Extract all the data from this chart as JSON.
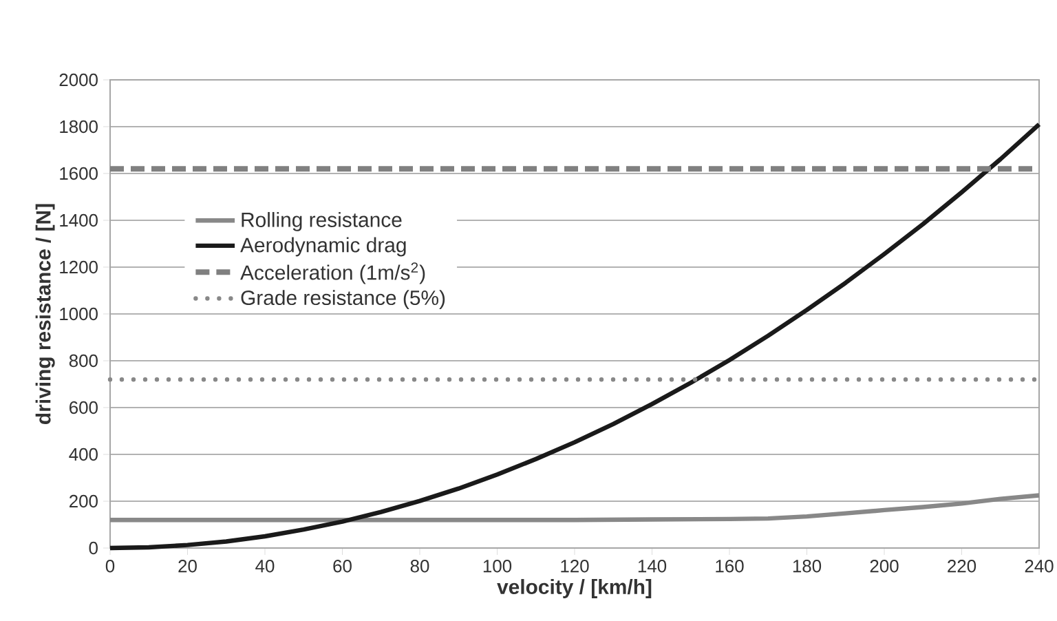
{
  "chart_data": {
    "type": "line",
    "xlabel": "velocity / [km/h]",
    "ylabel": "driving resistance / [N]",
    "xlim": [
      0,
      240
    ],
    "xticks": [
      0,
      20,
      40,
      60,
      80,
      100,
      120,
      140,
      160,
      180,
      200,
      220,
      240
    ],
    "ylim": [
      0,
      2000
    ],
    "yticks": [
      0,
      200,
      400,
      600,
      800,
      1000,
      1200,
      1400,
      1600,
      1800,
      2000
    ],
    "grid": "y",
    "legend": "left",
    "series": [
      {
        "name": "Rolling resistance",
        "color": "#888888",
        "line_style": "solid",
        "x": [
          0,
          20,
          40,
          60,
          80,
          100,
          120,
          140,
          160,
          170,
          180,
          190,
          200,
          210,
          220,
          230,
          240
        ],
        "values": [
          120,
          120,
          120,
          120,
          120,
          120,
          120,
          122,
          124,
          126,
          135,
          148,
          162,
          175,
          190,
          210,
          225
        ]
      },
      {
        "name": "Aerodynamic drag",
        "color": "#1a1a1a",
        "line_style": "solid",
        "x": [
          0,
          10,
          20,
          30,
          40,
          50,
          60,
          70,
          80,
          90,
          100,
          110,
          120,
          130,
          140,
          150,
          160,
          170,
          180,
          190,
          200,
          210,
          220,
          230,
          240
        ],
        "values": [
          0,
          3,
          13,
          28,
          50,
          79,
          113,
          154,
          201,
          254,
          314,
          380,
          452,
          530,
          615,
          706,
          803,
          907,
          1017,
          1133,
          1256,
          1384,
          1520,
          1661,
          1810
        ]
      },
      {
        "name": "Acceleration (1m/s$^{2}$)",
        "color": "#808080",
        "line_style": "dashed",
        "x": [
          0,
          240
        ],
        "values": [
          1620,
          1620
        ]
      },
      {
        "name": "Grade resistance (5%)",
        "color": "#888888",
        "line_style": "dotted",
        "x": [
          0,
          240
        ],
        "values": [
          720,
          720
        ]
      }
    ]
  }
}
